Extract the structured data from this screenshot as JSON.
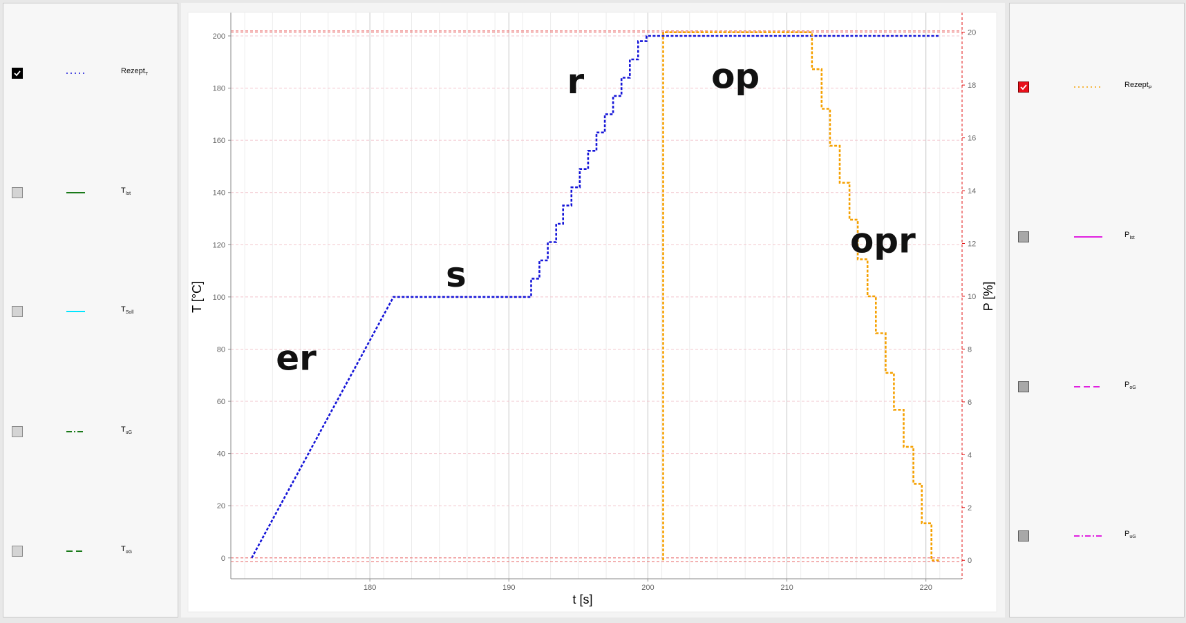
{
  "left_legend": [
    {
      "label": "Rezept",
      "sub": "T",
      "checked": true,
      "line_color": "#1414d8",
      "line_style": "dotted"
    },
    {
      "label": "T",
      "sub": "Ist",
      "checked": false,
      "line_color": "#1a7a1a",
      "line_style": "solid"
    },
    {
      "label": "T",
      "sub": "Soll",
      "checked": false,
      "line_color": "#00e5ff",
      "line_style": "solid"
    },
    {
      "label": "T",
      "sub": "uG",
      "checked": false,
      "line_color": "#1a7a1a",
      "line_style": "dash-dot"
    },
    {
      "label": "T",
      "sub": "oG",
      "checked": false,
      "line_color": "#1a7a1a",
      "line_style": "dashed"
    }
  ],
  "right_legend": [
    {
      "label": "Rezept",
      "sub": "P",
      "checked": true,
      "line_color": "#f5a000",
      "line_style": "dotted"
    },
    {
      "label": "P",
      "sub": "Ist",
      "checked": false,
      "line_color": "#e020e0",
      "line_style": "solid"
    },
    {
      "label": "P",
      "sub": "oG",
      "checked": false,
      "line_color": "#e020e0",
      "line_style": "dashed"
    },
    {
      "label": "P",
      "sub": "uG",
      "checked": false,
      "line_color": "#e020e0",
      "line_style": "dash-dot"
    }
  ],
  "chart_data": {
    "type": "line",
    "xlabel": "t [s]",
    "ylabel": "T [°C]",
    "y2label": "P [%]",
    "xlim": [
      170,
      222.6
    ],
    "ylim": [
      -8,
      209
    ],
    "y2lim": [
      -0.7,
      20.75
    ],
    "xticks": [
      180,
      190,
      200,
      210,
      220
    ],
    "yticks": [
      0,
      20,
      40,
      60,
      80,
      100,
      120,
      140,
      160,
      180,
      200
    ],
    "y2ticks": [
      0,
      2,
      4,
      6,
      8,
      10,
      12,
      14,
      16,
      18,
      20
    ],
    "limit_lines_T": [
      0,
      201.5
    ],
    "limit_lines_P": [
      -0.05,
      20.05
    ],
    "grid": true,
    "colors": {
      "rezept_t": "#1414d8",
      "rezept_p": "#f5a000",
      "limit": "#e86060",
      "axis_right": "#e01010"
    },
    "series": [
      {
        "name": "Rezept_T",
        "axis": "left",
        "x": [
          171.5,
          181.7,
          191.6,
          191.6,
          192.2,
          192.2,
          192.8,
          192.8,
          193.4,
          193.4,
          193.9,
          193.9,
          194.5,
          194.5,
          195.1,
          195.1,
          195.7,
          195.7,
          196.3,
          196.3,
          196.9,
          196.9,
          197.5,
          197.5,
          198.1,
          198.1,
          198.7,
          198.7,
          199.3,
          199.3,
          199.9,
          199.9,
          200.4,
          200.4,
          221
        ],
        "y": [
          0,
          100,
          100,
          107,
          107,
          114,
          114,
          121,
          121,
          128,
          128,
          135,
          135,
          142,
          142,
          149,
          149,
          156,
          156,
          163,
          163,
          170,
          170,
          177,
          177,
          184,
          184,
          191,
          191,
          198,
          198,
          200,
          200,
          200,
          200
        ]
      },
      {
        "name": "Rezept_P",
        "axis": "right",
        "x": [
          201.1,
          201.1,
          211.8,
          211.8,
          212.5,
          212.5,
          213.1,
          213.1,
          213.8,
          213.8,
          214.5,
          214.5,
          215.1,
          215.1,
          215.8,
          215.8,
          216.4,
          216.4,
          217.1,
          217.1,
          217.7,
          217.7,
          218.4,
          218.4,
          219.1,
          219.1,
          219.7,
          219.7,
          220.4,
          220.4,
          221
        ],
        "y": [
          0,
          20,
          20,
          18.6,
          18.6,
          17.1,
          17.1,
          15.7,
          15.7,
          14.3,
          14.3,
          12.9,
          12.9,
          11.4,
          11.4,
          10,
          10,
          8.6,
          8.6,
          7.1,
          7.1,
          5.7,
          5.7,
          4.3,
          4.3,
          2.9,
          2.9,
          1.4,
          1.4,
          0,
          0
        ]
      }
    ],
    "annotations": [
      {
        "text": "er",
        "x": 174.7,
        "y": 72
      },
      {
        "text": "s",
        "x": 186.2,
        "y": 104
      },
      {
        "text": "r",
        "x": 194.8,
        "y": 178
      },
      {
        "text": "op",
        "x": 206.3,
        "y": 180
      },
      {
        "text": "opr",
        "x": 216.9,
        "y": 117
      }
    ]
  }
}
